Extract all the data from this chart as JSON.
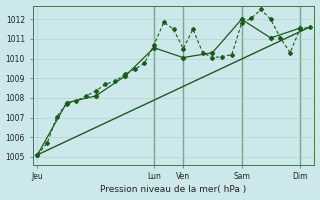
{
  "xlabel": "Pression niveau de la mer( hPa )",
  "background_color": "#cce8ea",
  "grid_major_color": "#aacccc",
  "grid_minor_color": "#c0dddd",
  "line_color": "#1a5c1a",
  "ylim": [
    1004.6,
    1012.7
  ],
  "yticks": [
    1005,
    1006,
    1007,
    1008,
    1009,
    1010,
    1011,
    1012
  ],
  "x_day_labels": [
    "Jeu",
    "Lun",
    "Ven",
    "Sam",
    "Dim"
  ],
  "x_day_positions": [
    0,
    12,
    15,
    21,
    27
  ],
  "xlim": [
    -0.5,
    28.5
  ],
  "vline_positions": [
    12,
    15,
    21,
    27
  ],
  "series1_x": [
    0,
    1,
    2,
    3,
    4,
    5,
    6,
    7,
    8,
    9,
    10,
    11,
    12,
    13,
    14,
    15,
    16,
    17,
    18,
    19,
    20,
    21,
    22,
    23,
    24,
    25,
    26,
    27,
    28
  ],
  "series1_y": [
    1005.1,
    1005.7,
    1007.05,
    1007.7,
    1007.85,
    1008.1,
    1008.35,
    1008.7,
    1008.85,
    1009.2,
    1009.45,
    1009.75,
    1010.7,
    1011.85,
    1011.5,
    1010.5,
    1011.5,
    1010.3,
    1010.05,
    1010.1,
    1010.2,
    1011.8,
    1012.05,
    1012.5,
    1012.0,
    1011.05,
    1010.3,
    1011.5,
    1011.6
  ],
  "series2_x": [
    0,
    3,
    6,
    9,
    12,
    15,
    18,
    21,
    24,
    27
  ],
  "series2_y": [
    1005.1,
    1007.75,
    1008.1,
    1009.1,
    1010.55,
    1010.05,
    1010.3,
    1012.0,
    1011.05,
    1011.55
  ],
  "series3_x": [
    0,
    28
  ],
  "series3_y": [
    1005.1,
    1011.6
  ]
}
